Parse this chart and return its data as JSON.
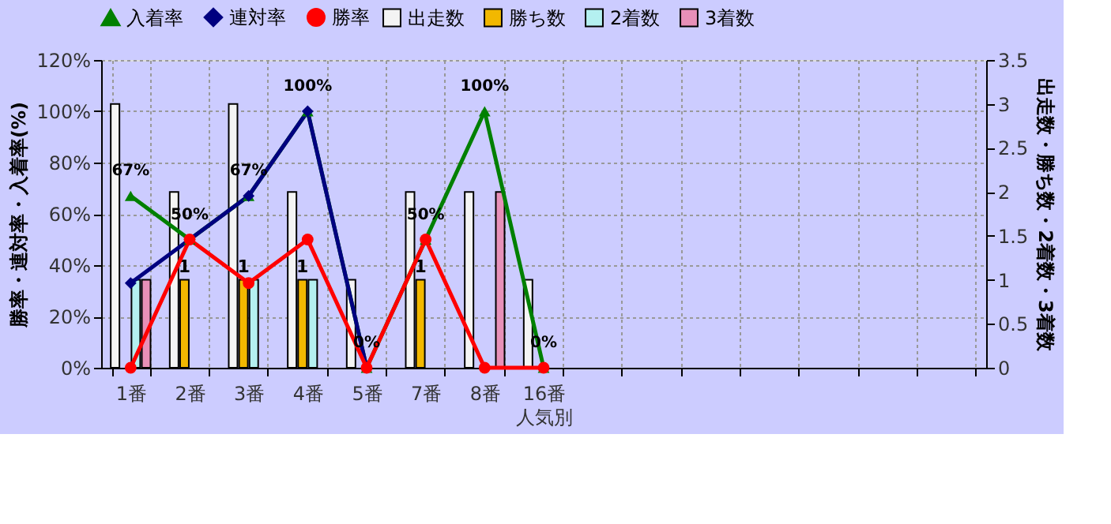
{
  "chart_data": {
    "type": "bar",
    "xlabel": "人気別",
    "ylabel": "勝率・連対率・入着率(%)",
    "y2label": "出走数・勝ち数・2着数・3着数",
    "categories": [
      "1番",
      "2番",
      "3番",
      "4番",
      "5番",
      "7番",
      "8番",
      "16番",
      null,
      null,
      null,
      null,
      null,
      null,
      null
    ],
    "series": [
      {
        "name": "出走数",
        "axis": "y2",
        "color": "#f4f4f4",
        "values": [
          3,
          2,
          3,
          2,
          1,
          2,
          2,
          1,
          null,
          null,
          null,
          null,
          null,
          null,
          null
        ]
      },
      {
        "name": "勝ち数",
        "axis": "y2",
        "color": "#f2b800",
        "values": [
          0,
          1,
          1,
          1,
          0,
          1,
          0,
          0,
          null,
          null,
          null,
          null,
          null,
          null,
          null
        ],
        "value_labels": [
          null,
          "1",
          "1",
          "1",
          null,
          "1",
          null,
          null,
          null,
          null,
          null,
          null,
          null,
          null,
          null
        ]
      },
      {
        "name": "2着数",
        "axis": "y2",
        "color": "#b4f0f0",
        "values": [
          1,
          0,
          1,
          1,
          0,
          0,
          0,
          0,
          null,
          null,
          null,
          null,
          null,
          null,
          null
        ]
      },
      {
        "name": "3着数",
        "axis": "y2",
        "color": "#e890b8",
        "values": [
          1,
          0,
          0,
          0,
          0,
          0,
          2,
          0,
          null,
          null,
          null,
          null,
          null,
          null,
          null
        ]
      },
      {
        "name": "入着率",
        "type": "line",
        "marker": "triangle",
        "color": "#008000",
        "values": [
          67,
          50,
          67,
          100,
          0,
          50,
          100,
          0,
          null,
          null,
          null,
          null,
          null,
          null,
          null
        ],
        "value_labels": [
          "67%",
          "50%",
          "67%",
          "100%",
          "0%",
          "50%",
          "100%",
          "0%",
          null,
          null,
          null,
          null,
          null,
          null,
          null
        ]
      },
      {
        "name": "連対率",
        "type": "line",
        "marker": "diamond",
        "color": "#000080",
        "values": [
          33,
          50,
          67,
          100,
          0,
          null,
          null,
          null,
          null,
          null,
          null,
          null,
          null,
          null,
          null
        ]
      },
      {
        "name": "勝率",
        "type": "line",
        "marker": "circle",
        "color": "#ff0000",
        "values": [
          0,
          50,
          33,
          50,
          0,
          50,
          0,
          0,
          null,
          null,
          null,
          null,
          null,
          null,
          null
        ]
      }
    ],
    "ylim": [
      0,
      120
    ],
    "yticks": [
      {
        "value": 0,
        "label": "0%"
      },
      {
        "value": 20,
        "label": "20%"
      },
      {
        "value": 40,
        "label": "40%"
      },
      {
        "value": 60,
        "label": "60%"
      },
      {
        "value": 80,
        "label": "80%"
      },
      {
        "value": 100,
        "label": "100%"
      },
      {
        "value": 120,
        "label": "120%"
      }
    ],
    "y2lim": [
      0,
      3.5
    ],
    "y2ticks": [
      0,
      0.5,
      1,
      1.5,
      2,
      2.5,
      3,
      3.5
    ],
    "grid": true,
    "legend": "top"
  }
}
